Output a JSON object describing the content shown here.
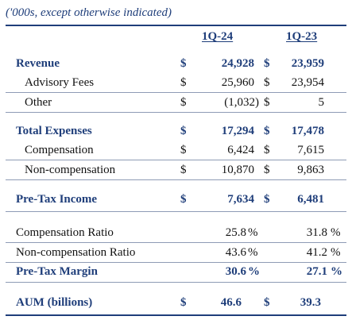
{
  "note": "('000s, except otherwise indicated)",
  "columns": {
    "c1": "1Q-24",
    "c2": "1Q-23"
  },
  "currency": "$",
  "pct": "%",
  "rows": {
    "revenue": {
      "label": "Revenue",
      "v1": "24,928",
      "v2": "23,959"
    },
    "advisory": {
      "label": "Advisory Fees",
      "v1": "25,960",
      "v2": "23,954"
    },
    "other": {
      "label": "Other",
      "v1": "(1,032)",
      "v2": "5"
    },
    "total_expenses": {
      "label": "Total Expenses",
      "v1": "17,294",
      "v2": "17,478"
    },
    "compensation": {
      "label": "Compensation",
      "v1": "6,424",
      "v2": "7,615"
    },
    "noncomp": {
      "label": "Non-compensation",
      "v1": "10,870",
      "v2": "9,863"
    },
    "pretax_income": {
      "label": "Pre-Tax Income",
      "v1": "7,634",
      "v2": "6,481"
    },
    "comp_ratio": {
      "label": "Compensation Ratio",
      "v1": "25.8",
      "v2": "31.8"
    },
    "noncomp_ratio": {
      "label": "Non-compensation Ratio",
      "v1": "43.6",
      "v2": "41.2"
    },
    "pretax_margin": {
      "label": "Pre-Tax Margin",
      "v1": "30.6",
      "v2": "27.1"
    },
    "aum": {
      "label": "AUM (billions)",
      "v1": "46.6",
      "v2": "39.3"
    }
  },
  "colors": {
    "accent": "#1f3e7a",
    "text": "#111111",
    "separator": "#8e9bb5"
  }
}
